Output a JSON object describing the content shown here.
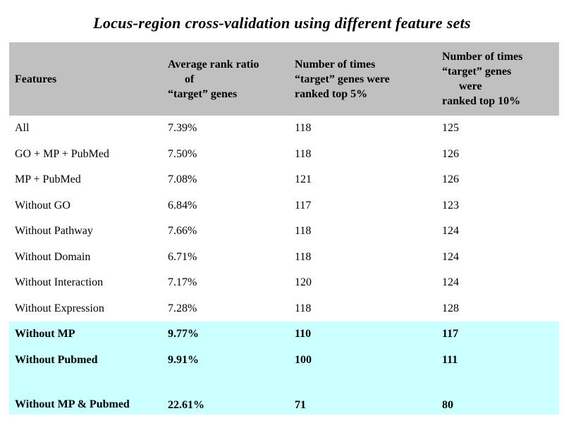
{
  "title": "Locus-region cross-validation using different feature sets",
  "highlight_color": "#ccffff",
  "header_color": "#c0c0c0",
  "headers": {
    "features": "Features",
    "avg_rank": [
      "Average rank ratio",
      "      of",
      "“target” genes"
    ],
    "top5": [
      "Number of times",
      "“target” genes were",
      "ranked top 5%"
    ],
    "top10": [
      "Number of times",
      "“target” genes",
      "      were",
      "ranked top 10%"
    ]
  },
  "rows": [
    {
      "feature": "All",
      "avg_rank": "7.39%",
      "top5": "118",
      "top10": "125"
    },
    {
      "feature": "GO + MP + PubMed",
      "avg_rank": "7.50%",
      "top5": "118",
      "top10": "126"
    },
    {
      "feature": "MP + PubMed",
      "avg_rank": "7.08%",
      "top5": "121",
      "top10": "126"
    },
    {
      "feature": "Without GO",
      "avg_rank": "6.84%",
      "top5": "117",
      "top10": "123"
    },
    {
      "feature": "Without Pathway",
      "avg_rank": "7.66%",
      "top5": "118",
      "top10": "124"
    },
    {
      "feature": "Without Domain",
      "avg_rank": "6.71%",
      "top5": "118",
      "top10": "124"
    },
    {
      "feature": "Without Interaction",
      "avg_rank": "7.17%",
      "top5": "120",
      "top10": "124"
    },
    {
      "feature": "Without Expression",
      "avg_rank": "7.28%",
      "top5": "118",
      "top10": "128"
    },
    {
      "feature": "Without MP",
      "avg_rank": "9.77%",
      "top5": "110",
      "top10": "117"
    },
    {
      "feature": "Without Pubmed",
      "avg_rank": "9.91%",
      "top5": "100",
      "top10": "111"
    },
    {
      "feature": "Without MP & Pubmed",
      "avg_rank": "22.61%",
      "top5": "71",
      "top10": "80"
    }
  ]
}
